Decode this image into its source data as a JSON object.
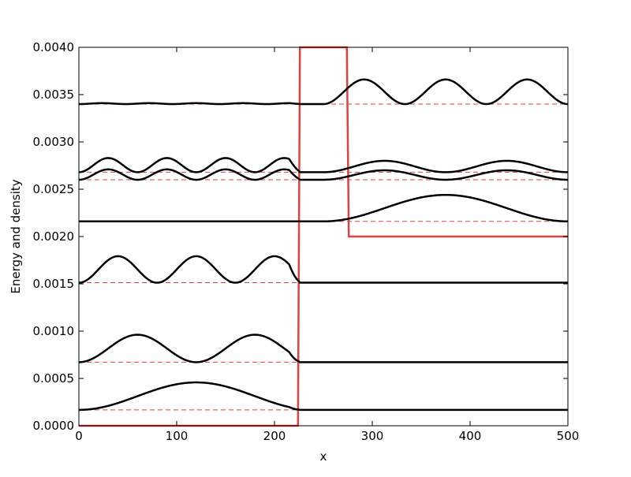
{
  "chart_data": {
    "type": "line",
    "xlabel": "x",
    "ylabel": "Energy and density",
    "xlim": [
      0,
      500
    ],
    "ylim": [
      0,
      0.004
    ],
    "grid": false,
    "x_ticks": [
      "0",
      "100",
      "200",
      "300",
      "400",
      "500"
    ],
    "y_ticks": [
      "0.0000",
      "0.0005",
      "0.0010",
      "0.0015",
      "0.0020",
      "0.0025",
      "0.0030",
      "0.0035",
      "0.0040"
    ],
    "colors": {
      "potential": "#e04040",
      "density": "#000000",
      "energy_level": "#e04040"
    },
    "potential": {
      "x": [
        0,
        224,
        226,
        274,
        276,
        500
      ],
      "y": [
        0,
        0,
        0.004,
        0.004,
        0.002,
        0.002
      ]
    },
    "energy_levels": [
      0.000168,
      0.000672,
      0.001512,
      0.00216,
      0.0026,
      0.00268,
      0.0034
    ],
    "density_curves": [
      {
        "energy": 0.000168,
        "left_bumps": 1,
        "left_amp": 0.00029,
        "right_bumps": 0,
        "right_amp": 0,
        "edge_fraction": 0.0
      },
      {
        "energy": 0.000672,
        "left_bumps": 2,
        "left_amp": 0.00029,
        "right_bumps": 0,
        "right_amp": 0,
        "edge_fraction": 0.0
      },
      {
        "energy": 0.001512,
        "left_bumps": 3,
        "left_amp": 0.00028,
        "right_bumps": 0,
        "right_amp": 0,
        "edge_fraction": 0.0
      },
      {
        "energy": 0.00216,
        "left_bumps": 0,
        "left_amp": 0.0,
        "right_bumps": 1,
        "right_amp": 0.00028,
        "edge_fraction": 0.0
      },
      {
        "energy": 0.0026,
        "left_bumps": 4,
        "left_amp": 0.00011,
        "right_bumps": 2,
        "right_amp": 0.0001,
        "edge_fraction": 0.0
      },
      {
        "energy": 0.00268,
        "left_bumps": 4,
        "left_amp": 0.00015,
        "right_bumps": 2,
        "right_amp": 0.00012,
        "edge_fraction": 0.0
      },
      {
        "energy": 0.0034,
        "left_bumps": 5,
        "left_amp": 1e-05,
        "right_bumps": 3,
        "right_amp": 0.00026,
        "edge_fraction": 0.0
      }
    ]
  }
}
